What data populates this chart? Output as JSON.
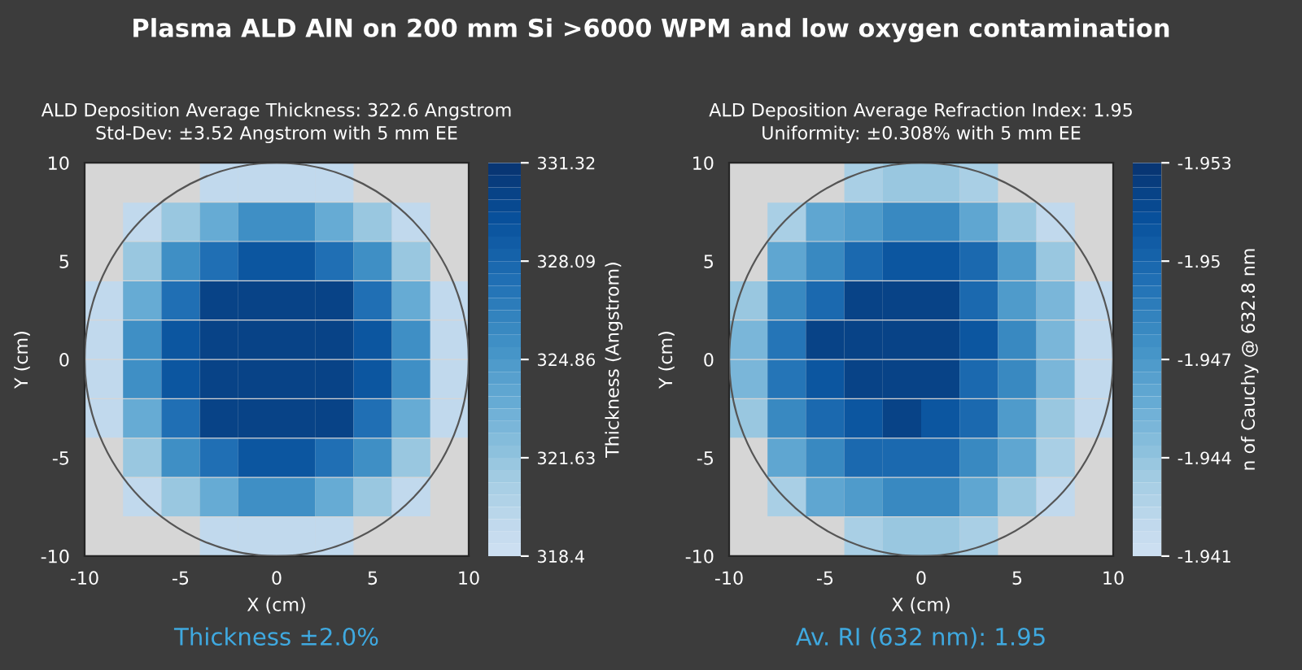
{
  "chart_data": [
    {
      "type": "scatter",
      "title": "Plasma ALD AlN on 200 mm Si >6000 WPM and low oxygen contamination",
      "subtitle": "ALD Deposition Average Thickness: 322.6 Angstrom\nStd-Dev: ±3.52 Angstrom with 5 mm EE",
      "xlabel": "X (cm)",
      "ylabel": "Y (cm)",
      "clabel": "Thickness (Angstrom)",
      "annotations": [
        "Thickness ±2.0%"
      ],
      "xlim": [
        -10,
        10
      ],
      "ylim": [
        -10,
        10
      ],
      "xticks": [
        -10,
        -5,
        0,
        5,
        10
      ],
      "yticks": [
        -10,
        -5,
        0,
        5,
        10
      ],
      "marker": "square",
      "clim": [
        318.4,
        331.32
      ],
      "cticks": [
        318.4,
        321.63,
        324.86,
        328.09,
        331.32
      ],
      "x": [
        -3,
        -1,
        1,
        3,
        -7,
        -5,
        -3,
        -1,
        1,
        3,
        5,
        7,
        -7,
        -5,
        -3,
        -1,
        1,
        3,
        5,
        7,
        -9,
        -7,
        -5,
        -3,
        -1,
        1,
        3,
        5,
        7,
        9,
        -9,
        -7,
        -5,
        -3,
        -1,
        1,
        3,
        5,
        7,
        9,
        -9,
        -7,
        -5,
        -3,
        -1,
        1,
        3,
        5,
        7,
        9,
        -9,
        -7,
        -5,
        -3,
        -1,
        1,
        3,
        5,
        7,
        9,
        -7,
        -5,
        -3,
        -1,
        1,
        3,
        5,
        7,
        -7,
        -5,
        -3,
        -1,
        1,
        3,
        5,
        7,
        -3,
        -1,
        1,
        3
      ],
      "values": [
        9,
        9,
        9,
        9,
        7,
        7,
        7,
        7,
        7,
        7,
        7,
        7,
        5,
        5,
        5,
        5,
        5,
        5,
        5,
        5,
        3,
        3,
        3,
        3,
        3,
        3,
        3,
        3,
        3,
        3,
        1,
        1,
        1,
        1,
        1,
        1,
        1,
        1,
        1,
        1,
        -1,
        -1,
        -1,
        -1,
        -1,
        -1,
        -1,
        -1,
        -1,
        -1,
        -3,
        -3,
        -3,
        -3,
        -3,
        -3,
        -3,
        -3,
        -3,
        -3,
        -5,
        -5,
        -5,
        -5,
        -5,
        -5,
        -5,
        -5,
        -7,
        -7,
        -7,
        -7,
        -7,
        -7,
        -7,
        -7,
        -9,
        -9,
        -9,
        -9
      ],
      "cvalues": [
        319.5,
        319.5,
        319.5,
        319.5,
        319.5,
        321.5,
        323.5,
        325.5,
        325.5,
        323.5,
        321.5,
        319.5,
        321.5,
        325.5,
        327.5,
        329,
        329,
        327.5,
        325.5,
        321.5,
        319.5,
        323.5,
        327.5,
        330.5,
        330.5,
        330.5,
        330.5,
        327.5,
        323.5,
        319.5,
        319.5,
        325.5,
        329,
        330.5,
        330.5,
        330.5,
        330.5,
        329,
        325.5,
        319.5,
        319.5,
        325.5,
        329,
        330.5,
        330.5,
        330.5,
        330.5,
        329,
        325.5,
        319.5,
        319.5,
        323.5,
        327.5,
        330.5,
        330.5,
        330.5,
        330.5,
        327.5,
        323.5,
        319.5,
        321.5,
        325.5,
        327.5,
        329,
        329,
        327.5,
        325.5,
        321.5,
        319.5,
        321.5,
        323.5,
        325.5,
        325.5,
        323.5,
        321.5,
        319.5,
        319.5,
        319.5,
        319.5,
        319.5
      ]
    },
    {
      "type": "scatter",
      "subtitle": "ALD Deposition Average Refraction Index: 1.95\nUniformity: ±0.308% with 5 mm EE",
      "xlabel": "X (cm)",
      "ylabel": "Y (cm)",
      "clabel": "n of Cauchy @ 632.8 nm",
      "annotations": [
        "Av. RI (632 nm): 1.95"
      ],
      "xlim": [
        -10,
        10
      ],
      "ylim": [
        -10,
        10
      ],
      "xticks": [
        -10,
        -5,
        0,
        5,
        10
      ],
      "yticks": [
        -10,
        -5,
        0,
        5,
        10
      ],
      "marker": "square",
      "clim": [
        -1.941,
        -1.953
      ],
      "cticks": [
        -1.941,
        -1.944,
        -1.947,
        -1.95,
        -1.953
      ],
      "x": [
        -3,
        -1,
        1,
        3,
        -7,
        -5,
        -3,
        -1,
        1,
        3,
        5,
        7,
        -7,
        -5,
        -3,
        -1,
        1,
        3,
        5,
        7,
        -9,
        -7,
        -5,
        -3,
        -1,
        1,
        3,
        5,
        7,
        9,
        -9,
        -7,
        -5,
        -3,
        -1,
        1,
        3,
        5,
        7,
        9,
        -9,
        -7,
        -5,
        -3,
        -1,
        1,
        3,
        5,
        7,
        9,
        -9,
        -7,
        -5,
        -3,
        -1,
        1,
        3,
        5,
        7,
        9,
        -7,
        -5,
        -3,
        -1,
        1,
        3,
        5,
        7,
        -7,
        -5,
        -3,
        -1,
        1,
        3,
        5,
        7,
        -3,
        -1,
        1,
        3
      ],
      "values": [
        9,
        9,
        9,
        9,
        7,
        7,
        7,
        7,
        7,
        7,
        7,
        7,
        5,
        5,
        5,
        5,
        5,
        5,
        5,
        5,
        3,
        3,
        3,
        3,
        3,
        3,
        3,
        3,
        3,
        3,
        1,
        1,
        1,
        1,
        1,
        1,
        1,
        1,
        1,
        1,
        -1,
        -1,
        -1,
        -1,
        -1,
        -1,
        -1,
        -1,
        -1,
        -1,
        -3,
        -3,
        -3,
        -3,
        -3,
        -3,
        -3,
        -3,
        -3,
        -3,
        -5,
        -5,
        -5,
        -5,
        -5,
        -5,
        -5,
        -5,
        -7,
        -7,
        -7,
        -7,
        -7,
        -7,
        -7,
        -7,
        -9,
        -9,
        -9,
        -9
      ],
      "cvalues": [
        -1.943,
        -1.944,
        -1.944,
        -1.943,
        -1.943,
        -1.946,
        -1.947,
        -1.948,
        -1.948,
        -1.946,
        -1.944,
        -1.942,
        -1.946,
        -1.948,
        -1.95,
        -1.951,
        -1.951,
        -1.95,
        -1.947,
        -1.944,
        -1.944,
        -1.948,
        -1.95,
        -1.952,
        -1.952,
        -1.952,
        -1.95,
        -1.947,
        -1.945,
        -1.942,
        -1.945,
        -1.949,
        -1.952,
        -1.952,
        -1.952,
        -1.952,
        -1.951,
        -1.948,
        -1.945,
        -1.942,
        -1.945,
        -1.949,
        -1.951,
        -1.952,
        -1.952,
        -1.952,
        -1.95,
        -1.948,
        -1.945,
        -1.942,
        -1.944,
        -1.948,
        -1.95,
        -1.951,
        -1.952,
        -1.951,
        -1.95,
        -1.947,
        -1.944,
        -1.942,
        -1.946,
        -1.948,
        -1.95,
        -1.95,
        -1.95,
        -1.948,
        -1.946,
        -1.943,
        -1.943,
        -1.946,
        -1.947,
        -1.948,
        -1.948,
        -1.946,
        -1.944,
        -1.942,
        -1.943,
        -1.944,
        -1.944,
        -1.943
      ]
    }
  ]
}
